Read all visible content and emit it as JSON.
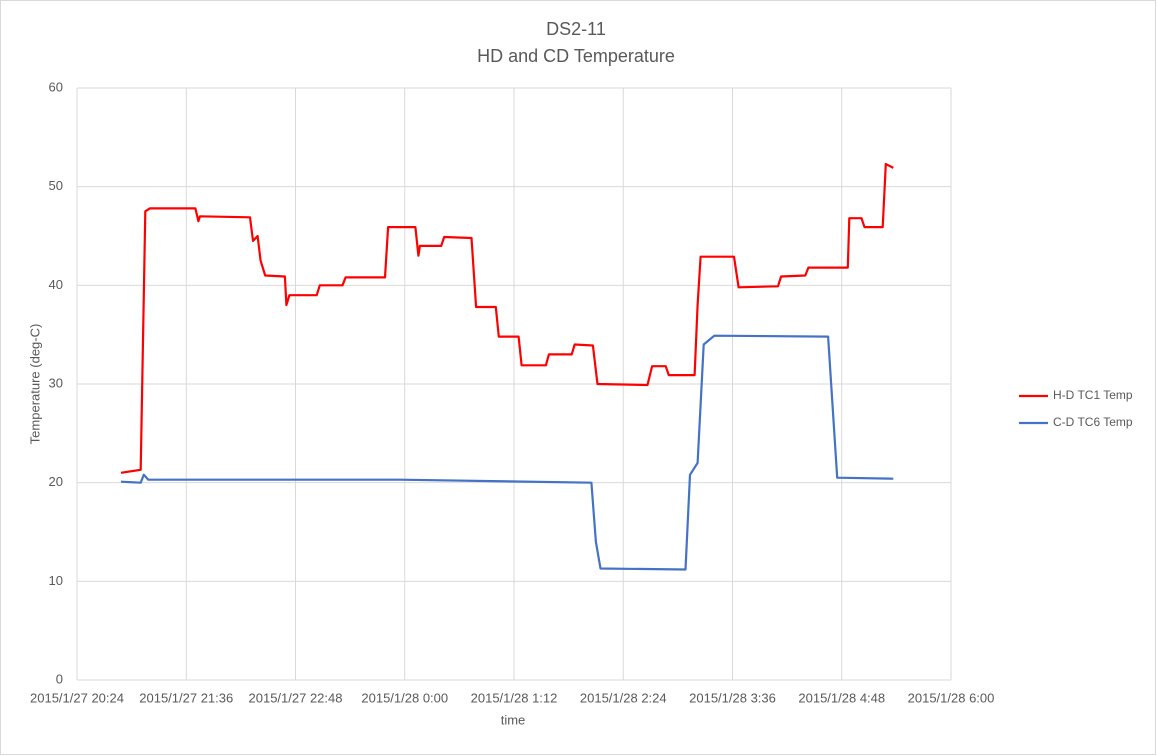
{
  "chart_data": {
    "type": "line",
    "title": "DS2-11",
    "subtitle": "HD and CD Temperature",
    "x_label": "time",
    "y_label": "Temperature (deg-C)",
    "xlim": [
      "2015/1/27 20:24",
      "2015/1/28 6:00"
    ],
    "xticks": [
      "2015/1/27 20:24",
      "2015/1/27 21:36",
      "2015/1/27 22:48",
      "2015/1/28 0:00",
      "2015/1/28 1:12",
      "2015/1/28 2:24",
      "2015/1/28 3:36",
      "2015/1/28 4:48",
      "2015/1/28 6:00"
    ],
    "ylim": [
      0,
      60
    ],
    "yticks": [
      0,
      10,
      20,
      30,
      40,
      50,
      60
    ],
    "grid": true,
    "legend": "right",
    "series": [
      {
        "name": "H-D TC1 Temp",
        "color": "#ff0000",
        "x": [
          "2015/1/27 20:53",
          "2015/1/27 21:06",
          "2015/1/27 21:09",
          "2015/1/27 21:12",
          "2015/1/27 21:42",
          "2015/1/27 21:44",
          "2015/1/27 21:45",
          "2015/1/27 22:18",
          "2015/1/27 22:20",
          "2015/1/27 22:23",
          "2015/1/27 22:25",
          "2015/1/27 22:28",
          "2015/1/27 22:41",
          "2015/1/27 22:42",
          "2015/1/27 22:44",
          "2015/1/27 23:02",
          "2015/1/27 23:04",
          "2015/1/27 23:19",
          "2015/1/27 23:21",
          "2015/1/27 23:47",
          "2015/1/27 23:49",
          "2015/1/28 0:07",
          "2015/1/28 0:09",
          "2015/1/28 0:10",
          "2015/1/28 0:24",
          "2015/1/28 0:26",
          "2015/1/28 0:44",
          "2015/1/28 0:47",
          "2015/1/28 1:00",
          "2015/1/28 1:02",
          "2015/1/28 1:15",
          "2015/1/28 1:17",
          "2015/1/28 1:33",
          "2015/1/28 1:35",
          "2015/1/28 1:50",
          "2015/1/28 1:52",
          "2015/1/28 2:04",
          "2015/1/28 2:07",
          "2015/1/28 2:40",
          "2015/1/28 2:43",
          "2015/1/28 2:52",
          "2015/1/28 2:54",
          "2015/1/28 3:11",
          "2015/1/28 3:13",
          "2015/1/28 3:15",
          "2015/1/28 3:37",
          "2015/1/28 3:40",
          "2015/1/28 4:06",
          "2015/1/28 4:08",
          "2015/1/28 4:24",
          "2015/1/28 4:26",
          "2015/1/28 4:52",
          "2015/1/28 4:53",
          "2015/1/28 5:01",
          "2015/1/28 5:03",
          "2015/1/28 5:15",
          "2015/1/28 5:17",
          "2015/1/28 5:22"
        ],
        "values": [
          21,
          21.3,
          47.5,
          47.8,
          47.8,
          46.5,
          47,
          46.9,
          44.5,
          45,
          42.5,
          41,
          40.9,
          38,
          39,
          39,
          40,
          40,
          40.8,
          40.8,
          45.9,
          45.9,
          43,
          44,
          44,
          44.9,
          44.8,
          37.8,
          37.8,
          34.8,
          34.8,
          31.9,
          31.9,
          33,
          33,
          34,
          33.9,
          30,
          29.9,
          31.8,
          31.8,
          30.9,
          30.9,
          38,
          42.9,
          42.9,
          39.8,
          39.9,
          40.9,
          41,
          41.8,
          41.8,
          46.8,
          46.8,
          45.9,
          45.9,
          52.3,
          51.9
        ]
      },
      {
        "name": "C-D TC6 Temp",
        "color": "#4472c4",
        "x": [
          "2015/1/27 20:53",
          "2015/1/27 21:06",
          "2015/1/27 21:08",
          "2015/1/27 21:11",
          "2015/1/27 23:57",
          "2015/1/28 2:03",
          "2015/1/28 2:06",
          "2015/1/28 2:09",
          "2015/1/28 3:05",
          "2015/1/28 3:08",
          "2015/1/28 3:13",
          "2015/1/28 3:17",
          "2015/1/28 3:24",
          "2015/1/28 4:39",
          "2015/1/28 4:45",
          "2015/1/28 5:22"
        ],
        "values": [
          20.1,
          20,
          20.8,
          20.3,
          20.3,
          20,
          14,
          11.3,
          11.2,
          20.8,
          22,
          34,
          34.9,
          34.8,
          20.5,
          20.4
        ]
      }
    ]
  }
}
